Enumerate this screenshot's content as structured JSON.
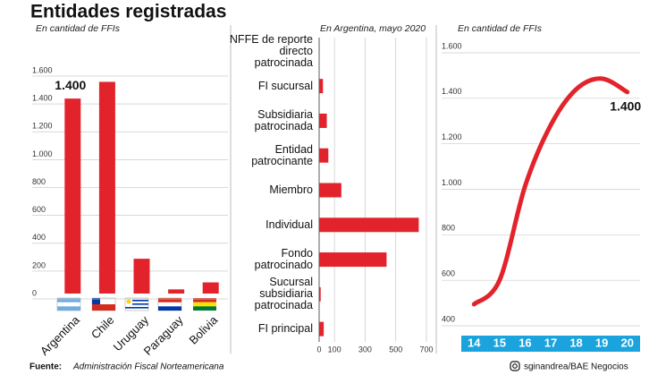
{
  "title": "Entidades registradas",
  "footer": {
    "source_label": "Fuente:",
    "source": "Administración Fiscal Norteamericana",
    "credit": "sginandrea/BAE Negocios"
  },
  "chart_data": [
    {
      "type": "bar",
      "subtitle": "En cantidad de FFIs",
      "categories": [
        "Argentina",
        "Chile",
        "Uruguay",
        "Paraguay",
        "Bolivia"
      ],
      "values": [
        1400,
        1520,
        250,
        30,
        80
      ],
      "value_labels": [
        "1.400",
        null,
        null,
        null,
        null
      ],
      "color": "#e3232c",
      "ylim": [
        0,
        1600
      ],
      "yticks": [
        0,
        200,
        400,
        600,
        800,
        {
          "value": 1000,
          "label": "1.000"
        },
        {
          "value": 1200,
          "label": "1.200"
        },
        {
          "value": 1400,
          "label": "1.400"
        },
        {
          "value": 1600,
          "label": "1.600"
        }
      ],
      "grid": true
    },
    {
      "type": "bar",
      "orientation": "horizontal",
      "subtitle": "En Argentina, mayo 2020",
      "categories": [
        "NFFE de reporte directo patrocinada",
        "FI sucursal",
        "Subsidiaria patrocinada",
        "Entidad patrocinante",
        "Miembro",
        "Individual",
        "Fondo patrocinado",
        "Sucursal subsidiaria patrocinada",
        "FI principal"
      ],
      "values": [
        3,
        25,
        50,
        60,
        145,
        650,
        440,
        10,
        30
      ],
      "color": "#e3232c",
      "xlim": [
        0,
        700
      ],
      "xticks": [
        0,
        100,
        300,
        500,
        700
      ],
      "grid": true
    },
    {
      "type": "line",
      "subtitle": "En cantidad de FFIs",
      "categories": [
        "14",
        "15",
        "16",
        "17",
        "18",
        "19",
        "20"
      ],
      "values": [
        467,
        573,
        987,
        1254,
        1412,
        1459,
        1400
      ],
      "value_labels": [
        null,
        null,
        null,
        null,
        null,
        null,
        "1.400"
      ],
      "color": "#e3232c",
      "ylim": [
        400,
        1600
      ],
      "yticks": [
        400,
        600,
        800,
        {
          "value": 1000,
          "label": "1.000"
        },
        {
          "value": 1200,
          "label": "1.200"
        },
        {
          "value": 1400,
          "label": "1.400"
        },
        {
          "value": 1600,
          "label": "1.600"
        }
      ],
      "grid": true
    }
  ]
}
